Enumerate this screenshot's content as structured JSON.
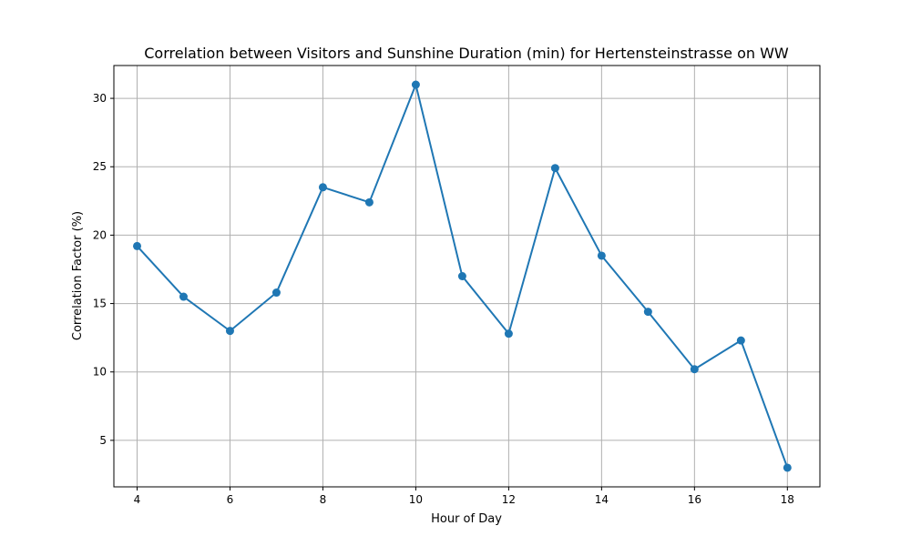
{
  "chart_data": {
    "type": "line",
    "title": "Correlation between Visitors and Sunshine Duration (min) for Hertensteinstrasse on WW",
    "xlabel": "Hour of Day",
    "ylabel": "Correlation Factor (%)",
    "x": [
      4,
      5,
      6,
      7,
      8,
      9,
      10,
      11,
      12,
      13,
      14,
      15,
      16,
      17,
      18
    ],
    "series": [
      {
        "values": [
          19.2,
          15.5,
          13.0,
          15.8,
          23.5,
          22.4,
          31.0,
          17.0,
          12.8,
          24.9,
          18.5,
          14.4,
          10.2,
          12.3,
          3.0
        ],
        "color": "#1f77b4",
        "marker": "circle"
      }
    ],
    "xlim": [
      3.5,
      18.7
    ],
    "ylim": [
      1.6,
      32.4
    ],
    "xticks": [
      4,
      6,
      8,
      10,
      12,
      14,
      16,
      18
    ],
    "yticks": [
      5,
      10,
      15,
      20,
      25,
      30
    ],
    "grid": true,
    "legend": "none"
  }
}
